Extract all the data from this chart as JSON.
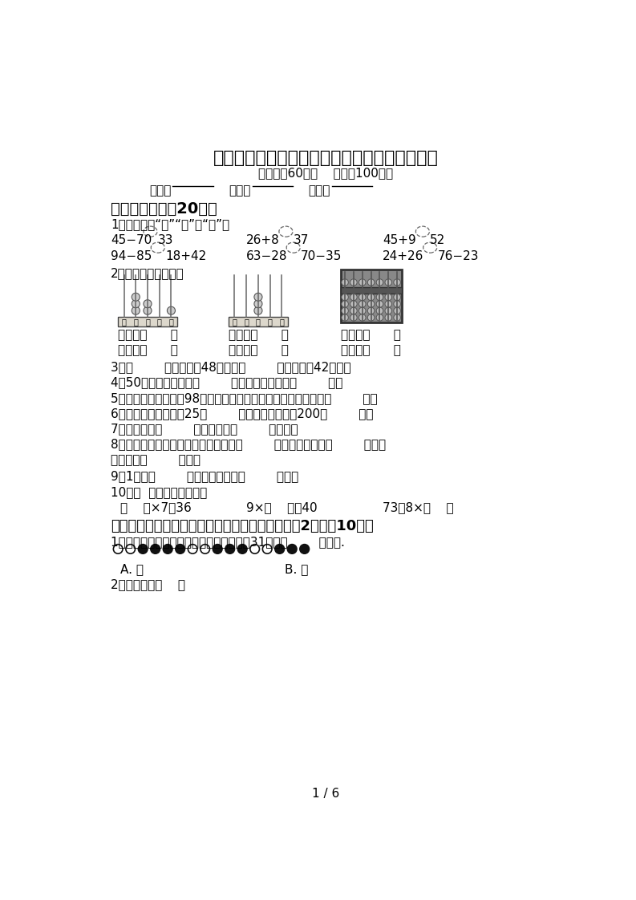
{
  "title": "冀教版二年级数学上册期中试卷及答案【下载】",
  "subtitle": "（时间：60分钟    分数：100分）",
  "section1": "一、填空题。（20分）",
  "q1_label": "1、在里填上“＞”“＜”或“＝”．",
  "q2_label": "2、看图写数、读数。",
  "write_row": [
    "写作：（      ）",
    "写作：（      ）",
    "写作：（      ）"
  ],
  "read_row": [
    "读作：（      ）",
    "读作：（      ）",
    "读作：（      ）"
  ],
  "q3": "3、（        ）只蟹蟹有48条腿；（        ）只蜜蜂有42条腿。",
  "q4": "4、50前面的一个数是（        ），后面一个数是（        ）．",
  "q5": "5、一盏台灯的价格是98元，爸爸买了两盏台灯，大约一共花了（        ）。",
  "q6": "6、小丽同学的体重是25（        ）；一个梨子约重200（        ）．",
  "q7": "7、一个角有（        ）个顶点和（        ）条边。",
  "q8a": "8、计数器上，从右边数起，第一位是（        ）位，第二位是（        ）位，",
  "q8b": "第三位是（        ）位。",
  "q9": "9、1时＝（        ）分．半小时是（        ）分．",
  "q10a": "10、（  ）里最大能填几？",
  "q10b": [
    "（    ）×7＜36",
    "9×（    ）＜40",
    "73＞8×（    ）"
  ],
  "section2": "二、选择题。（把正确答案序号填在括号里。每题2分，入10分）",
  "q_sel1a": "1、按下面的方式摆珠子，从左往右数，第31飵是（        ）颜色.",
  "q_sel1_A": "A. 黑",
  "q_sel1_B": "B. 白",
  "q_sel2": "2、一张床长（    ）",
  "page_num": "1 / 6",
  "bg_color": "#ffffff"
}
